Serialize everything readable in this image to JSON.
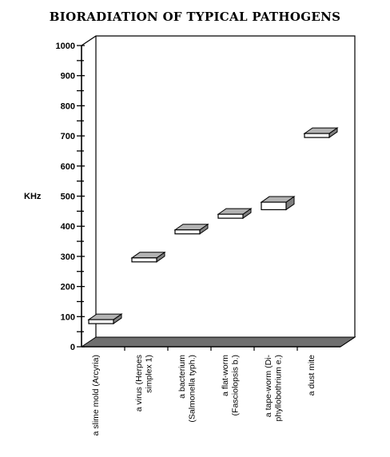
{
  "chart_data": {
    "type": "bar",
    "title": "BIORADIATION OF TYPICAL PATHOGENS",
    "ylabel": "KHz",
    "xlabel": "",
    "ylim": [
      0,
      1000
    ],
    "yticks": [
      0,
      100,
      200,
      300,
      400,
      500,
      600,
      700,
      800,
      900,
      1000
    ],
    "categories": [
      [
        "a slime mold (Arcyria)"
      ],
      [
        "a virus (Herpes",
        "simplex 1)"
      ],
      [
        "a bacterium",
        "(Salmonella typh.)"
      ],
      [
        "a flat-worm",
        "(Fasciolopsis b.)"
      ],
      [
        "a tape-worm (Di-",
        "phyllobothrium e.)"
      ],
      [
        "a dust mite"
      ]
    ],
    "bars": [
      {
        "low": 80,
        "high": 90
      },
      {
        "low": 290,
        "high": 295
      },
      {
        "low": 378,
        "high": 388
      },
      {
        "low": 428,
        "high": 440
      },
      {
        "low": 455,
        "high": 480
      },
      {
        "low": 700,
        "high": 708
      }
    ],
    "colors": {
      "bar_front": "#ffffff",
      "bar_top": "#b3b3b3",
      "bar_side": "#7f7f7f",
      "floor": "#6e6e6e",
      "axis": "#000000"
    }
  }
}
